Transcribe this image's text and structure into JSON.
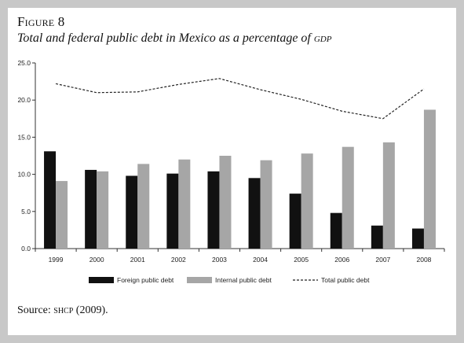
{
  "figure": {
    "label": "Figure 8",
    "title_main": "Total and federal public debt in Mexico as a percentage of ",
    "title_abbrev": "gdp",
    "source_prefix": "Source: ",
    "source_abbrev": "shcp",
    "source_suffix": " (2009)."
  },
  "colors": {
    "foreign": "#111111",
    "internal": "#a6a6a6",
    "total": "#222222",
    "axis": "#333333"
  },
  "chart_data": {
    "type": "bar",
    "title": "Total and federal public debt in Mexico as a percentage of GDP",
    "xlabel": "",
    "ylabel": "",
    "categories": [
      "1999",
      "2000",
      "2001",
      "2002",
      "2003",
      "2004",
      "2005",
      "2006",
      "2007",
      "2008"
    ],
    "ylim": [
      0,
      25
    ],
    "yticks": [
      "0.0",
      "5.0",
      "10.0",
      "15.0",
      "20.0",
      "25.0"
    ],
    "grid": false,
    "legend_position": "bottom",
    "series": [
      {
        "name": "Foreign public debt",
        "kind": "bar",
        "values": [
          13.1,
          10.6,
          9.8,
          10.1,
          10.4,
          9.5,
          7.4,
          4.8,
          3.1,
          2.7
        ]
      },
      {
        "name": "Internal public debt",
        "kind": "bar",
        "values": [
          9.1,
          10.4,
          11.4,
          12.0,
          12.5,
          11.9,
          12.8,
          13.7,
          14.3,
          18.7
        ]
      },
      {
        "name": "Total public debt",
        "kind": "line",
        "style": "dashed",
        "values": [
          22.2,
          21.0,
          21.1,
          22.1,
          22.9,
          21.4,
          20.1,
          18.5,
          17.5,
          21.5
        ]
      }
    ]
  }
}
